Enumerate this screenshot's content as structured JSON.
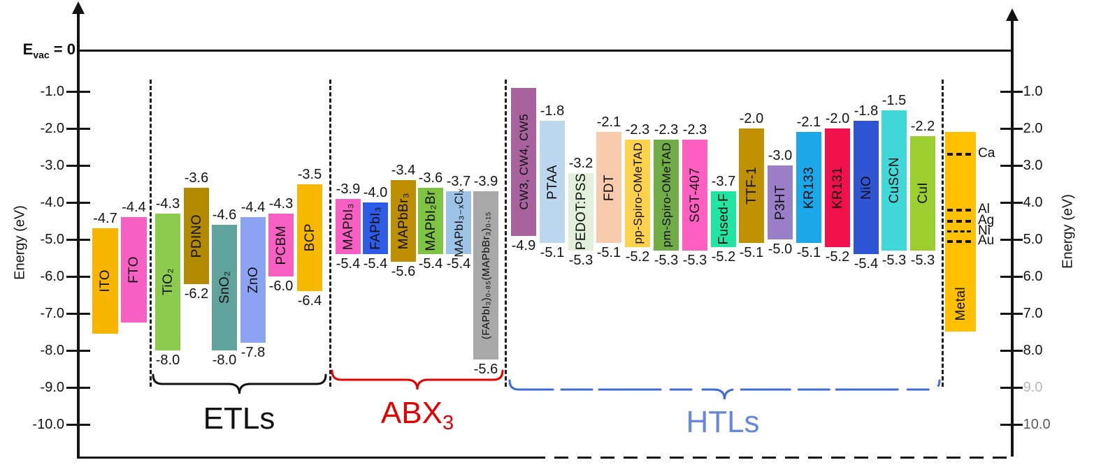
{
  "figure": {
    "evac": {
      "base": "E",
      "sub": "vac",
      "rest": " = 0"
    },
    "axis_label_left": "Energy (eV)",
    "axis_label_right": "Energy (eV)"
  },
  "chart_data": {
    "type": "bar",
    "subtype": "energy-level-diagram",
    "title": "",
    "ylabel": "Energy (eV)",
    "ylim": [
      0,
      -10.5
    ],
    "vacuum_level": {
      "value": 0,
      "label": "E_vac = 0"
    },
    "yticks": [
      {
        "v": -1,
        "label": "-1.0"
      },
      {
        "v": -2,
        "label": "-2.0"
      },
      {
        "v": -3,
        "label": "-3.0"
      },
      {
        "v": -4,
        "label": "-4.0"
      },
      {
        "v": -5,
        "label": "-5.0"
      },
      {
        "v": -6,
        "label": "-6.0"
      },
      {
        "v": -7,
        "label": "-7.0"
      },
      {
        "v": -8,
        "label": "-8.0"
      },
      {
        "v": -9,
        "label": "-9.0"
      },
      {
        "v": -10,
        "label": "-10.0"
      }
    ],
    "right_label_opacity": [
      1,
      1,
      1,
      1,
      1,
      1,
      1,
      1,
      0.3,
      0.7
    ],
    "groups": [
      {
        "id": "electrodes",
        "label": null,
        "color": null
      },
      {
        "id": "etls",
        "label": "ETLs",
        "label_sub": null,
        "color": "#111111"
      },
      {
        "id": "abx3",
        "label": "ABX",
        "label_sub": "3",
        "color": "#e60000"
      },
      {
        "id": "htls",
        "label": "HTLs",
        "label_sub": null,
        "color": "#3f6bd8",
        "faded": true
      }
    ],
    "bars": [
      {
        "g": "electrodes",
        "name": "ITO",
        "top": -4.7,
        "top_label": "-4.7",
        "bottom": null,
        "bottom_label": null,
        "dbot": -7.55,
        "color": "#F7B500"
      },
      {
        "g": "electrodes",
        "name": "FTO",
        "top": -4.4,
        "top_label": "-4.4",
        "bottom": null,
        "bottom_label": null,
        "dbot": -7.25,
        "color": "#F75FC3"
      },
      {
        "g": "etls",
        "name": "TiO₂",
        "top": -4.3,
        "top_label": "-4.3",
        "bottom": -8.0,
        "bottom_label": "-8.0",
        "color": "#8CCB4E"
      },
      {
        "g": "etls",
        "name": "PDINO",
        "top": -3.6,
        "top_label": "-3.6",
        "bottom": -6.2,
        "bottom_label": "-6.2",
        "color": "#B28B00"
      },
      {
        "g": "etls",
        "name": "SnO₂",
        "top": -4.6,
        "top_label": "-4.6",
        "bottom": -8.0,
        "bottom_label": "-8.0",
        "color": "#5FA39C"
      },
      {
        "g": "etls",
        "name": "ZnO",
        "top": -4.4,
        "top_label": "-4.4",
        "bottom": -7.8,
        "bottom_label": "-7.8",
        "color": "#8CA3F2"
      },
      {
        "g": "etls",
        "name": "PCBM",
        "top": -4.3,
        "top_label": "-4.3",
        "bottom": -6.0,
        "bottom_label": "-6.0",
        "color": "#F75FC3"
      },
      {
        "g": "etls",
        "name": "BCP",
        "top": -3.5,
        "top_label": "-3.5",
        "bottom": -6.4,
        "bottom_label": "-6.4",
        "color": "#F7B800"
      },
      {
        "g": "abx3",
        "name": "MAPbI₃",
        "top": -3.9,
        "top_label": "-3.9",
        "bottom": -5.4,
        "bottom_label": "-5.4",
        "color": "#F75FC3"
      },
      {
        "g": "abx3",
        "name": "FAPbI₃",
        "top": -4.0,
        "top_label": "-4.0",
        "bottom": -5.4,
        "bottom_label": "-5.4",
        "color": "#2E5CE6"
      },
      {
        "g": "abx3",
        "name": "MAPbBr₃",
        "top": -3.4,
        "top_label": "-3.4",
        "bottom": -5.6,
        "bottom_label": "-5.6",
        "color": "#BE8F00"
      },
      {
        "g": "abx3",
        "name": "MAPbI₂Br",
        "top": -3.6,
        "top_label": "-3.6",
        "bottom": -5.4,
        "bottom_label": "-5.4",
        "color": "#7EC342"
      },
      {
        "g": "abx3",
        "name": "MAPbI₃₋ₓClₓ",
        "top": -3.7,
        "top_label": "-3.7",
        "bottom": -5.4,
        "bottom_label": "-5.4",
        "color": "#9DC3E6"
      },
      {
        "g": "abx3",
        "name": "(FAPbI₃)₀.₈₅(MAPbBr₃)₀.₁₅",
        "top": -3.9,
        "top_label": "-3.9",
        "bottom": -5.6,
        "bottom_label": "-5.6",
        "dtop": -3.7,
        "dbot": -8.25,
        "color": "#A8A8A8"
      },
      {
        "g": "htls",
        "name": "CW3, CW4, CW5",
        "top": null,
        "top_label": null,
        "bottom": -4.9,
        "bottom_label": "-4.9",
        "dtop": -0.9,
        "color": "#A8639E"
      },
      {
        "g": "htls",
        "name": "PTAA",
        "top": -1.8,
        "top_label": "-1.8",
        "bottom": -5.1,
        "bottom_label": "-5.1",
        "color": "#BDD7EE"
      },
      {
        "g": "htls",
        "name": "PEDOT:PSS",
        "top": -3.2,
        "top_label": "-3.2",
        "bottom": -5.3,
        "bottom_label": "-5.3",
        "color": "#E2EFDA"
      },
      {
        "g": "htls",
        "name": "FDT",
        "top": -2.1,
        "top_label": "-2.1",
        "bottom": -5.1,
        "bottom_label": "-5.1",
        "color": "#F8CBAD"
      },
      {
        "g": "htls",
        "name": "pp-Spiro-OMeTAD",
        "top": -2.3,
        "top_label": "-2.3",
        "bottom": -5.2,
        "bottom_label": "-5.2",
        "color": "#FFD24D"
      },
      {
        "g": "htls",
        "name": "pm-Spiro-OMeTAD",
        "top": -2.3,
        "top_label": "-2.3",
        "bottom": -5.3,
        "bottom_label": "-5.3",
        "color": "#70AD47"
      },
      {
        "g": "htls",
        "name": "SGT-407",
        "top": -2.3,
        "top_label": "-2.3",
        "bottom": -5.3,
        "bottom_label": "-5.3",
        "color": "#FF5FC0"
      },
      {
        "g": "htls",
        "name": "Fused-F",
        "top": -3.7,
        "top_label": "-3.7",
        "bottom": -5.2,
        "bottom_label": "-5.2",
        "color": "#21E5A2"
      },
      {
        "g": "htls",
        "name": "TTF-1",
        "top": -2.0,
        "top_label": "-2.0",
        "bottom": -5.1,
        "bottom_label": "-5.1",
        "color": "#BF9000"
      },
      {
        "g": "htls",
        "name": "P3HT",
        "top": -3.0,
        "top_label": "-3.0",
        "bottom": -5.0,
        "bottom_label": "-5.0",
        "color": "#9B7EC8"
      },
      {
        "g": "htls",
        "name": "KR133",
        "top": -2.1,
        "top_label": "-2.1",
        "bottom": -5.1,
        "bottom_label": "-5.1",
        "color": "#1BA7E8"
      },
      {
        "g": "htls",
        "name": "KR131",
        "top": -2.0,
        "top_label": "-2.0",
        "bottom": -5.2,
        "bottom_label": "-5.2",
        "color": "#F0104C"
      },
      {
        "g": "htls",
        "name": "NiO",
        "top": -1.8,
        "top_label": "-1.8",
        "bottom": -5.4,
        "bottom_label": "-5.4",
        "color": "#2F55D4"
      },
      {
        "g": "htls",
        "name": "CuSCN",
        "top": -1.5,
        "top_label": "-1.5",
        "bottom": -5.3,
        "bottom_label": "-5.3",
        "color": "#40D8D8"
      },
      {
        "g": "htls",
        "name": "CuI",
        "top": -2.2,
        "top_label": "-2.2",
        "bottom": -5.3,
        "bottom_label": "-5.3",
        "color": "#9CCE30"
      }
    ],
    "metal": {
      "name": "Metal",
      "color": "#FFC000",
      "dtop": -2.1,
      "dbot": -7.5,
      "levels": [
        {
          "element": "Ca",
          "energy": -2.7
        },
        {
          "element": "Al",
          "energy": -4.2
        },
        {
          "element": "Ag",
          "energy": -4.5
        },
        {
          "element": "Ni",
          "energy": -4.8
        },
        {
          "element": "Au",
          "energy": -5.05
        }
      ]
    }
  }
}
